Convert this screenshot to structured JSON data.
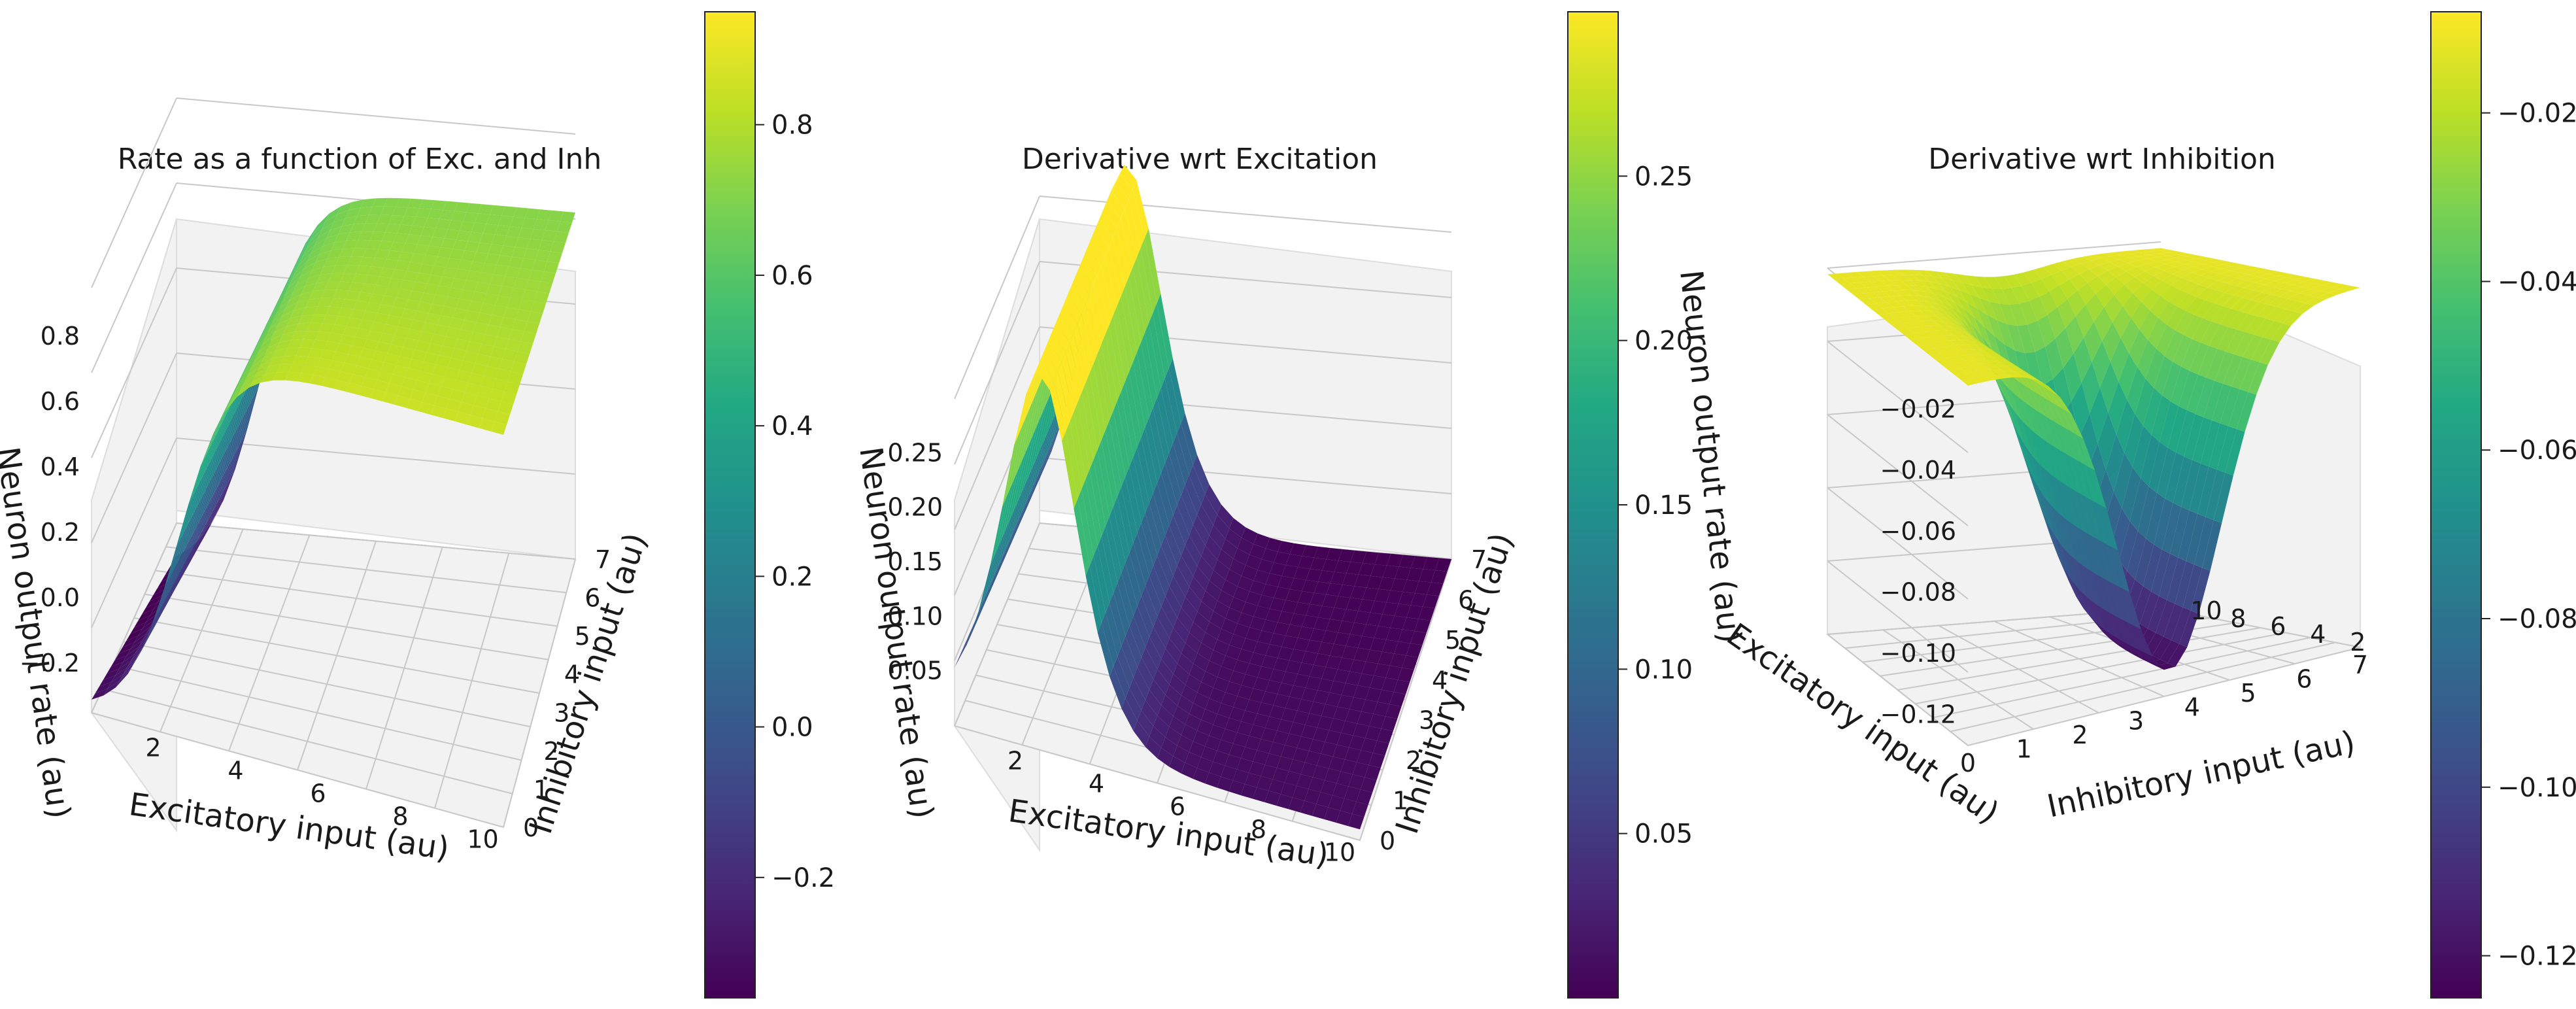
{
  "chart_data": [
    {
      "type": "surface3d",
      "title": "Rate as a function of Exc. and Inh",
      "xlabel": "Excitatory input (au)",
      "ylabel": "Inhibitory input (au)",
      "zlabel": "Neuron output rate (au)",
      "x_ticks": [
        "2",
        "4",
        "6",
        "8",
        "10"
      ],
      "y_ticks": [
        "0",
        "1",
        "2",
        "3",
        "4",
        "5",
        "6",
        "7"
      ],
      "z_ticks": [
        "−0.2",
        "0.0",
        "0.2",
        "0.4",
        "0.6",
        "0.8"
      ],
      "xlim": [
        0.5,
        10.5
      ],
      "ylim": [
        0,
        7
      ],
      "zlim": [
        -0.35,
        0.95
      ],
      "colormap": "viridis",
      "colorbar": {
        "min": -0.36,
        "max": 0.95,
        "ticks": [
          -0.2,
          0.0,
          0.2,
          0.4,
          0.6,
          0.8
        ],
        "labels": [
          "−0.2",
          "0.0",
          "0.2",
          "0.4",
          "0.6",
          "0.8"
        ]
      },
      "function": "rate",
      "view": {
        "elev": 40,
        "azim": -100
      }
    },
    {
      "type": "surface3d",
      "title": "Derivative wrt Excitation",
      "xlabel": "Excitatory input (au)",
      "ylabel": "Inhibitory input (au)",
      "zlabel": "Neuron output rate (au)",
      "x_ticks": [
        "2",
        "4",
        "6",
        "8",
        "10"
      ],
      "y_ticks": [
        "0",
        "1",
        "2",
        "3",
        "4",
        "5",
        "6",
        "7"
      ],
      "z_ticks": [
        "0.05",
        "0.10",
        "0.15",
        "0.20",
        "0.25"
      ],
      "xlim": [
        0.5,
        10.5
      ],
      "ylim": [
        0,
        7
      ],
      "zlim": [
        0.0,
        0.3
      ],
      "colormap": "viridis",
      "colorbar": {
        "min": 0.0,
        "max": 0.3,
        "ticks": [
          0.05,
          0.1,
          0.15,
          0.2,
          0.25
        ],
        "labels": [
          "0.05",
          "0.10",
          "0.15",
          "0.20",
          "0.25"
        ]
      },
      "function": "dexc",
      "view": {
        "elev": 40,
        "azim": -100
      }
    },
    {
      "type": "surface3d",
      "title": "Derivative wrt Inhibition",
      "xlabel": "Inhibitory input (au)",
      "ylabel": "Excitatory input (au)",
      "zlabel": "Neuron output rate (au)",
      "x_ticks": [
        "0",
        "1",
        "2",
        "3",
        "4",
        "5",
        "6",
        "7"
      ],
      "y_ticks": [
        "2",
        "4",
        "6",
        "8",
        "10"
      ],
      "z_ticks": [
        "−0.02",
        "−0.04",
        "−0.06",
        "−0.08",
        "−0.10",
        "−0.12"
      ],
      "xlim": [
        0,
        7
      ],
      "ylim": [
        0.5,
        10.5
      ],
      "zlim": [
        -0.13,
        -0.01
      ],
      "colormap": "viridis",
      "colorbar": {
        "min": -0.125,
        "max": -0.008,
        "ticks": [
          -0.02,
          -0.04,
          -0.06,
          -0.08,
          -0.1,
          -0.12
        ],
        "labels": [
          "−0.02",
          "−0.04",
          "−0.06",
          "−0.08",
          "−0.10",
          "−0.12"
        ]
      },
      "function": "dinh",
      "view": {
        "elev": 15,
        "azim": -115
      }
    }
  ]
}
